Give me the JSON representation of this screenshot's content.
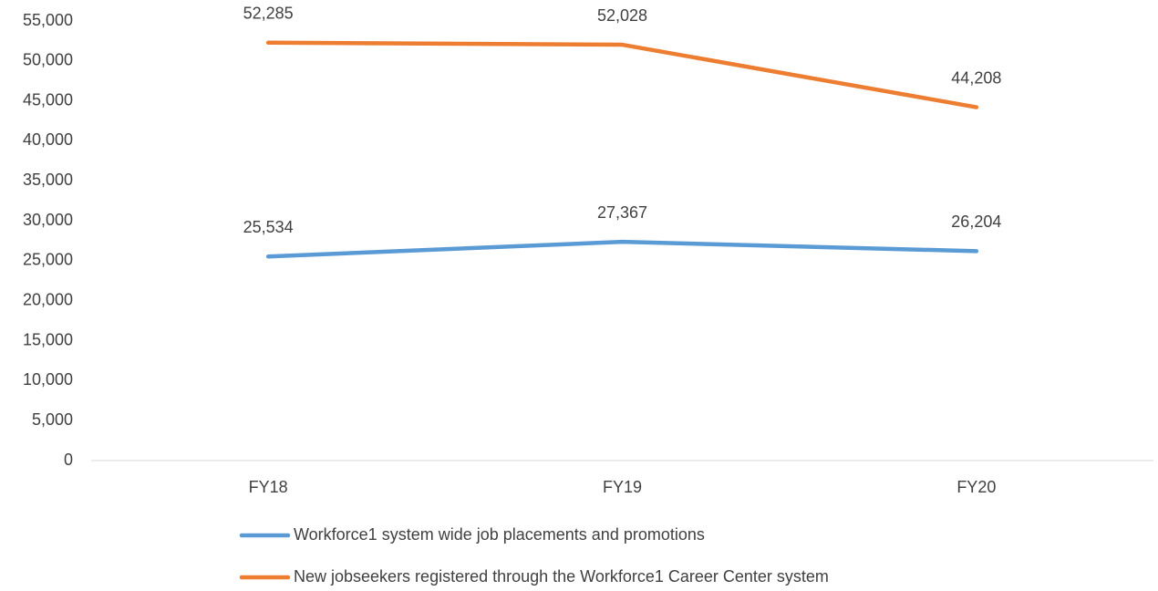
{
  "chart_data": {
    "type": "line",
    "categories": [
      "FY18",
      "FY19",
      "FY20"
    ],
    "series": [
      {
        "name": "Workforce1 system wide job placements and promotions",
        "color": "#5b9bd5",
        "values": [
          25534,
          27367,
          26204
        ],
        "value_labels": [
          "25,534",
          "27,367",
          "26,204"
        ]
      },
      {
        "name": "New jobseekers registered through the Workforce1 Career Center system",
        "color": "#ed7d31",
        "values": [
          52285,
          52028,
          44208
        ],
        "value_labels": [
          "52,285",
          "52,028",
          "44,208"
        ]
      }
    ],
    "ylim": [
      0,
      55000
    ],
    "yticks": [
      0,
      {
        "value": 5000,
        "label": "5,000"
      },
      {
        "value": 10000,
        "label": "10,000"
      },
      {
        "value": 15000,
        "label": "15,000"
      },
      {
        "value": 20000,
        "label": "20,000"
      },
      {
        "value": 25000,
        "label": "25,000"
      },
      {
        "value": 30000,
        "label": "30,000"
      },
      {
        "value": 35000,
        "label": "35,000"
      },
      {
        "value": 40000,
        "label": "40,000"
      },
      {
        "value": 45000,
        "label": "45,000"
      },
      {
        "value": 50000,
        "label": "50,000"
      },
      {
        "value": 55000,
        "label": "55,000"
      }
    ],
    "grid": false,
    "legend": "bottom"
  }
}
